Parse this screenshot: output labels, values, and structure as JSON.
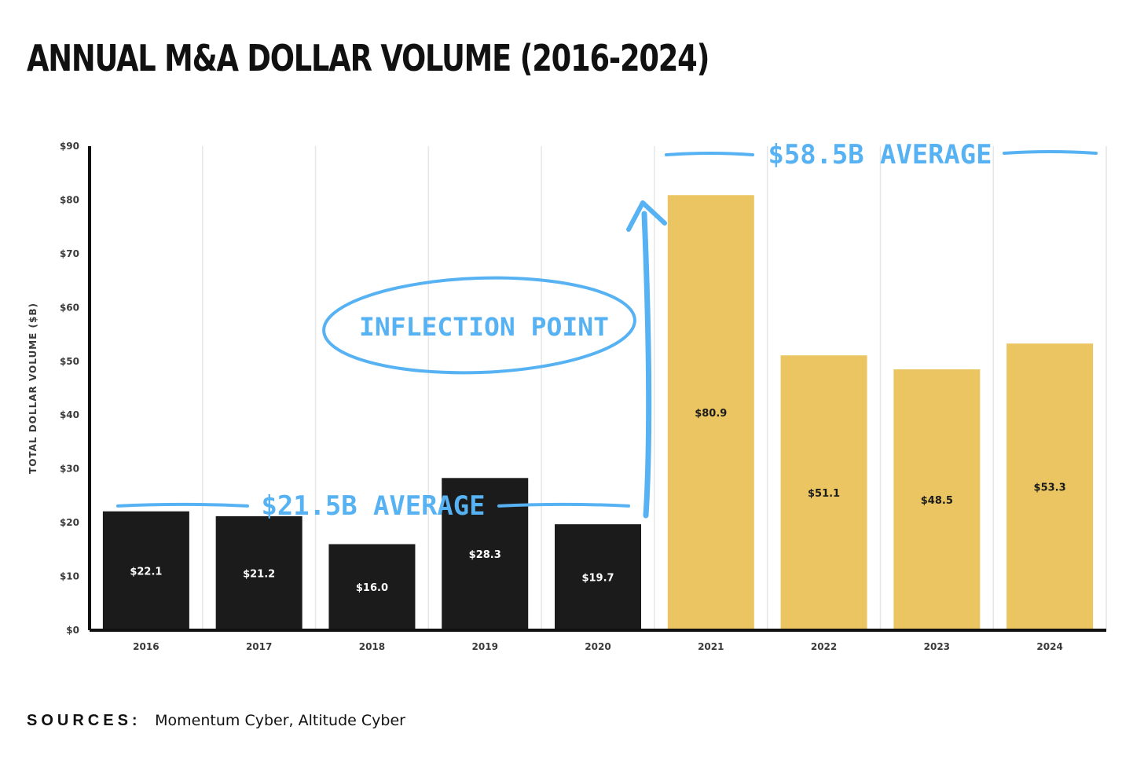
{
  "title": "ANNUAL M&A DOLLAR VOLUME (2016-2024)",
  "sources": {
    "label": "SOURCES:",
    "text": "Momentum Cyber, Altitude Cyber"
  },
  "colors": {
    "pre_inflection_bar": "#1b1b1b",
    "post_inflection_bar": "#eac562",
    "annotation": "#56b2f2",
    "axis": "#111111",
    "grid": "#e6e6e6"
  },
  "chart_data": {
    "type": "bar",
    "title": "ANNUAL M&A DOLLAR VOLUME (2016-2024)",
    "xlabel": "",
    "ylabel": "TOTAL DOLLAR VOLUME ($B)",
    "ylim": [
      0,
      90
    ],
    "yticks": [
      0,
      10,
      20,
      30,
      40,
      50,
      60,
      70,
      80,
      90
    ],
    "ytick_labels": [
      "$0",
      "$10",
      "$20",
      "$30",
      "$40",
      "$50",
      "$60",
      "$70",
      "$80",
      "$90"
    ],
    "grid": "vertical",
    "categories": [
      "2016",
      "2017",
      "2018",
      "2019",
      "2020",
      "2021",
      "2022",
      "2023",
      "2024"
    ],
    "values": [
      22.1,
      21.2,
      16.0,
      28.3,
      19.7,
      80.9,
      51.1,
      48.5,
      53.3
    ],
    "data_labels": [
      "$22.1",
      "$21.2",
      "$16.0",
      "$28.3",
      "$19.7",
      "$80.9",
      "$51.1",
      "$48.5",
      "$53.3"
    ],
    "annotations": [
      {
        "text": "$21.5B AVERAGE",
        "value": 21.5,
        "from": "2016",
        "to": "2020"
      },
      {
        "text": "INFLECTION POINT"
      },
      {
        "text": "$58.5B AVERAGE",
        "value": 58.5,
        "from": "2021",
        "to": "2024"
      }
    ]
  }
}
